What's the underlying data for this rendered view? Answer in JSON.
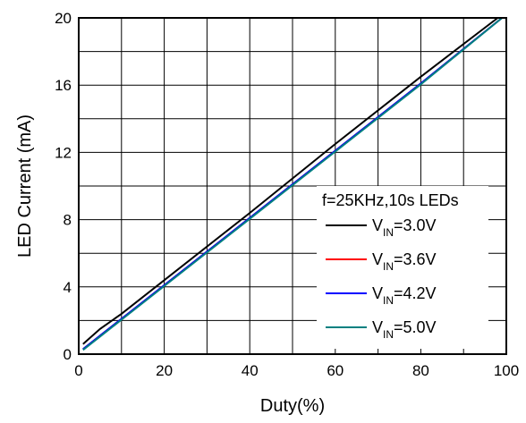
{
  "chart_data": {
    "type": "line",
    "xlabel": "Duty(%)",
    "ylabel": "LED Current (mA)",
    "xlim": [
      0,
      100
    ],
    "ylim": [
      0,
      20
    ],
    "xticks": [
      "0",
      "20",
      "40",
      "60",
      "80",
      "100"
    ],
    "yticks": [
      "0",
      "4",
      "8",
      "12",
      "16",
      "20"
    ],
    "grid": true,
    "legend_position": "lower-right",
    "legend_title": "f=25KHz,10s LEDs",
    "series": [
      {
        "name": "V_IN=3.0V",
        "label_prefix": "V",
        "label_sub": "IN",
        "label_suffix": "=3.0V",
        "color": "#000000",
        "x": [
          1,
          5,
          10,
          20,
          40,
          60,
          80,
          98
        ],
        "y": [
          0.6,
          1.5,
          2.4,
          4.4,
          8.4,
          12.5,
          16.5,
          20.0
        ]
      },
      {
        "name": "V_IN=3.6V",
        "label_prefix": "V",
        "label_sub": "IN",
        "label_suffix": "=3.6V",
        "color": "#ff0000",
        "x": [
          1,
          5,
          10,
          20,
          40,
          60,
          80,
          99
        ],
        "y": [
          0.3,
          1.1,
          2.1,
          4.1,
          8.1,
          12.1,
          16.1,
          20.0
        ]
      },
      {
        "name": "V_IN=4.2V",
        "label_prefix": "V",
        "label_sub": "IN",
        "label_suffix": "=4.2V",
        "color": "#0000ff",
        "x": [
          1,
          5,
          10,
          20,
          40,
          60,
          80,
          99
        ],
        "y": [
          0.3,
          1.1,
          2.1,
          4.1,
          8.1,
          12.1,
          16.1,
          20.0
        ]
      },
      {
        "name": "V_IN=5.0V",
        "label_prefix": "V",
        "label_sub": "IN",
        "label_suffix": "=5.0V",
        "color": "#008080",
        "x": [
          1,
          5,
          10,
          20,
          40,
          60,
          80,
          99
        ],
        "y": [
          0.25,
          1.05,
          2.05,
          4.05,
          8.05,
          12.05,
          16.05,
          20.0
        ]
      }
    ]
  }
}
